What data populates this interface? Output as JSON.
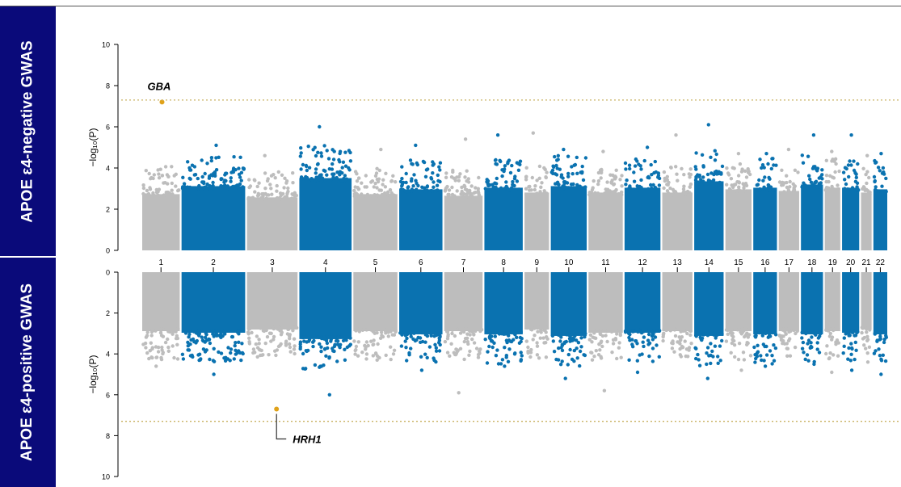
{
  "panels": {
    "top_label": "APOE ε4-negative GWAS",
    "bottom_label": "APOE ε4-positive GWAS"
  },
  "colors": {
    "odd_chromosome": "#bdbdbd",
    "even_chromosome": "#0a72b0",
    "highlight": "#e0a21a",
    "threshold_line": "#c8b060",
    "label_background": "#0a0a7a"
  },
  "chart_data": [
    {
      "type": "scatter",
      "subtype": "manhattan",
      "panel": "top",
      "ylabel": "−log₁₀(P)",
      "ylim": [
        0,
        10
      ],
      "y_ticks": [
        0,
        2,
        4,
        6,
        8,
        10
      ],
      "threshold": 7.3,
      "chromosomes": [
        "1",
        "2",
        "3",
        "4",
        "5",
        "6",
        "7",
        "8",
        "9",
        "10",
        "11",
        "12",
        "13",
        "14",
        "15",
        "16",
        "17",
        "18",
        "19",
        "20",
        "21",
        "22"
      ],
      "baseline_max_per_chromosome": [
        3.5,
        4.0,
        3.3,
        4.5,
        3.5,
        3.8,
        3.4,
        3.9,
        3.6,
        4.0,
        3.6,
        3.9,
        3.6,
        4.3,
        3.8,
        3.9,
        3.7,
        4.1,
        3.9,
        3.9,
        3.6,
        3.8
      ],
      "peak_per_chromosome": [
        7.2,
        5.1,
        4.6,
        6.0,
        4.9,
        5.1,
        5.4,
        5.6,
        5.7,
        4.9,
        4.8,
        5.0,
        5.6,
        6.1,
        4.7,
        4.7,
        4.9,
        5.6,
        4.8,
        5.6,
        4.6,
        4.7
      ],
      "annotations": [
        {
          "label": "GBA",
          "chromosome": "1",
          "y": 7.2
        }
      ]
    },
    {
      "type": "scatter",
      "subtype": "manhattan",
      "panel": "bottom",
      "ylabel": "−log₁₀(P)",
      "ylim": [
        0,
        10
      ],
      "y_axis_inverted": true,
      "y_ticks": [
        0,
        2,
        4,
        6,
        8,
        10
      ],
      "threshold": 7.3,
      "chromosomes": [
        "1",
        "2",
        "3",
        "4",
        "5",
        "6",
        "7",
        "8",
        "9",
        "10",
        "11",
        "12",
        "13",
        "14",
        "15",
        "16",
        "17",
        "18",
        "19",
        "20",
        "21",
        "22"
      ],
      "baseline_max_per_chromosome": [
        3.7,
        3.8,
        3.6,
        4.2,
        3.7,
        3.9,
        3.7,
        3.9,
        3.6,
        4.0,
        3.8,
        3.8,
        3.7,
        4.0,
        3.7,
        3.9,
        3.7,
        3.9,
        3.7,
        3.8,
        3.6,
        3.9
      ],
      "peak_per_chromosome": [
        4.6,
        5.0,
        6.7,
        6.0,
        4.3,
        4.8,
        5.9,
        4.6,
        4.2,
        5.2,
        5.8,
        4.9,
        3.9,
        5.2,
        4.8,
        4.6,
        4.1,
        4.5,
        4.9,
        4.8,
        4.4,
        5.0
      ],
      "annotations": [
        {
          "label": "HRH1",
          "chromosome": "3",
          "y": 6.7
        }
      ]
    }
  ]
}
